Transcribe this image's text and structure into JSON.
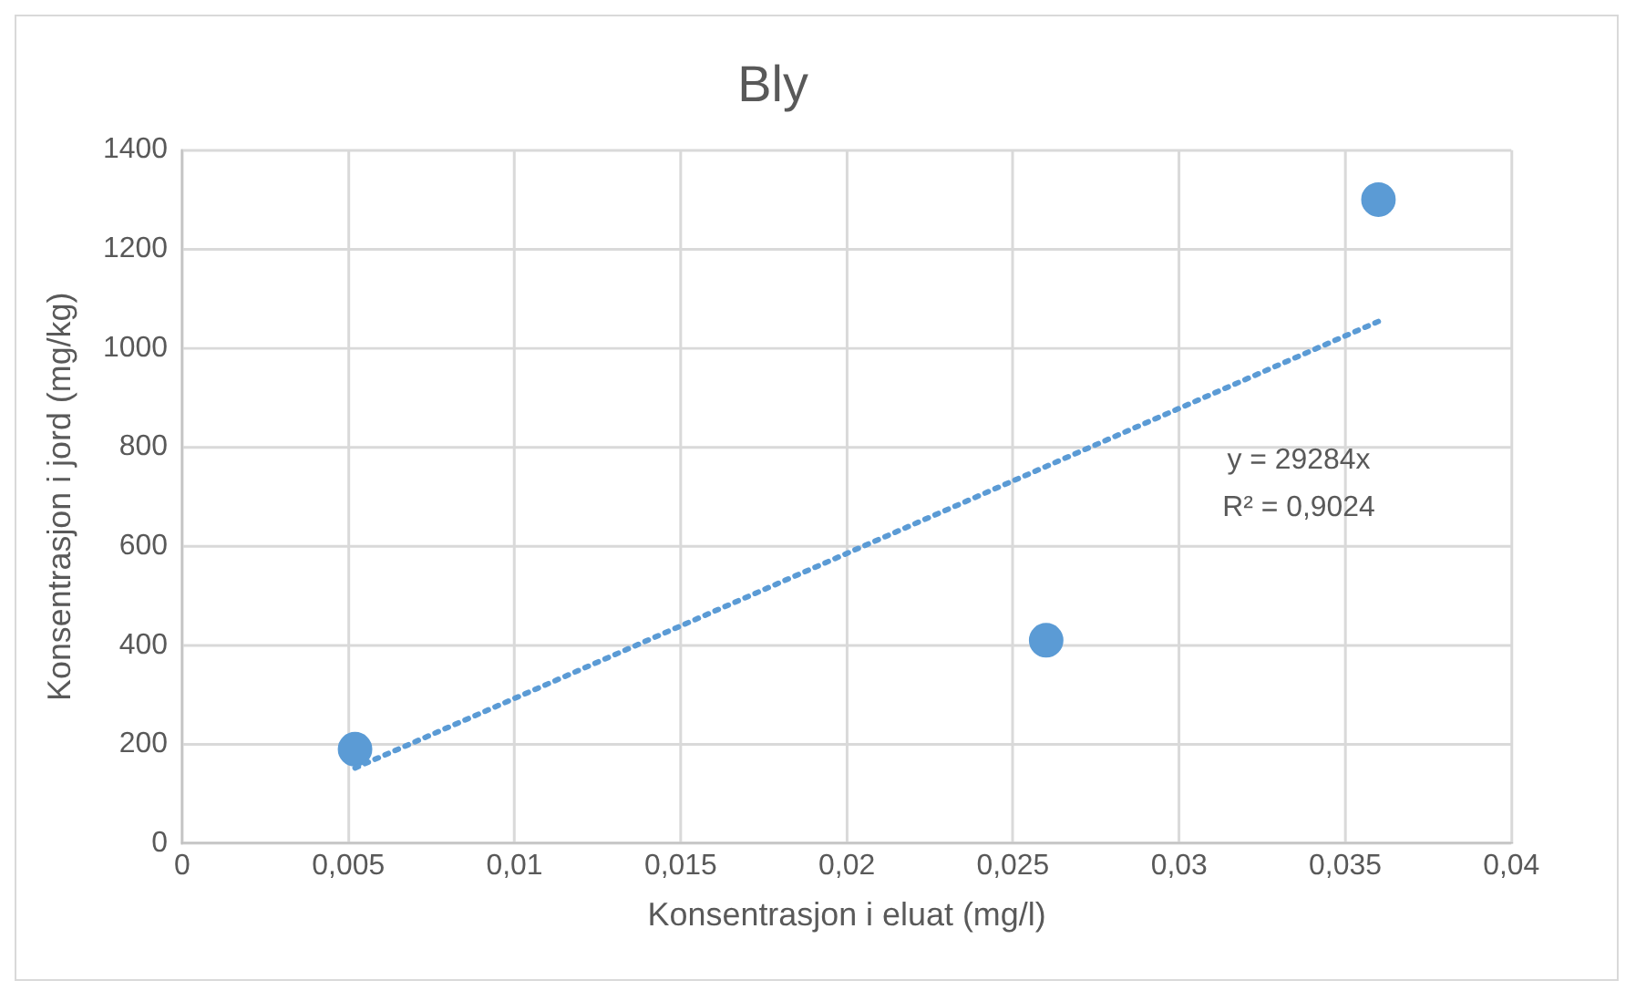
{
  "chart_data": {
    "type": "scatter",
    "title": "Bly",
    "xlabel": "Konsentrasjon i eluat (mg/l)",
    "ylabel": "Konsentrasjon i jord (mg/kg)",
    "series": [
      {
        "color": "#5b9bd5",
        "x": [
          0.0052,
          0.026,
          0.036
        ],
        "values": [
          190,
          410,
          1300
        ],
        "marker": "circle"
      },
      {
        "type": "line",
        "color": "#5b9bd5",
        "x": [
          0.0052,
          0.036
        ],
        "values": [
          152,
          1054
        ],
        "marker": "none",
        "line_style": "dotted"
      }
    ],
    "xlim": [
      0,
      0.04
    ],
    "xticks": [
      {
        "value": 0,
        "label": "0"
      },
      {
        "value": 0.005,
        "label": "0,005"
      },
      {
        "value": 0.01,
        "label": "0,01"
      },
      {
        "value": 0.015,
        "label": "0,015"
      },
      {
        "value": 0.02,
        "label": "0,02"
      },
      {
        "value": 0.025,
        "label": "0,025"
      },
      {
        "value": 0.03,
        "label": "0,03"
      },
      {
        "value": 0.035,
        "label": "0,035"
      },
      {
        "value": 0.04,
        "label": "0,04"
      }
    ],
    "ylim": [
      0,
      1400
    ],
    "yticks": [
      0,
      200,
      400,
      600,
      800,
      1000,
      1200,
      1400
    ],
    "grid": true,
    "legend": false,
    "annotations": [
      "y = 29284x",
      "R² = 0,9024"
    ]
  }
}
